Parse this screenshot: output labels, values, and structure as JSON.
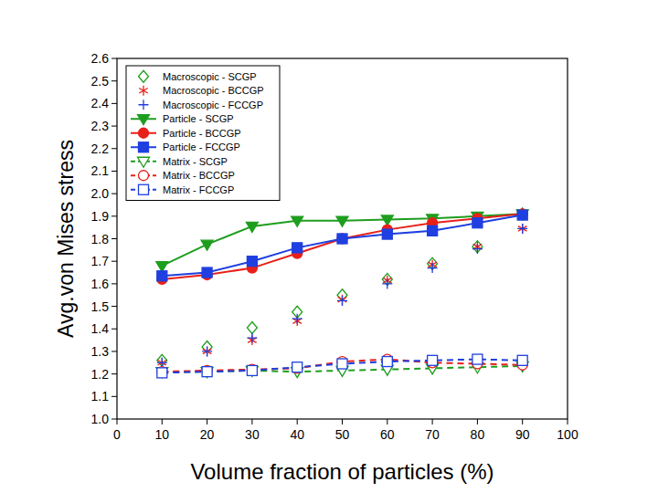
{
  "chart_data": {
    "type": "line",
    "x_label": "Volume fraction of particles (%)",
    "y_label": "Avg.von Mises stress",
    "x": [
      10,
      20,
      30,
      40,
      50,
      60,
      70,
      80,
      90
    ],
    "xlim": [
      0,
      100
    ],
    "xticks": [
      0,
      10,
      20,
      30,
      40,
      50,
      60,
      70,
      80,
      90,
      100
    ],
    "ylim": [
      1,
      2.6
    ],
    "yticks": [
      {
        "value": 1,
        "label": "1.0"
      },
      1.1,
      1.2,
      1.3,
      1.4,
      1.5,
      1.6,
      1.7,
      1.8,
      1.9,
      {
        "value": 2,
        "label": "2.0"
      },
      2.1,
      2.2,
      2.3,
      2.4,
      2.5,
      2.6
    ],
    "grid": false,
    "legend": "top-left",
    "series": [
      {
        "name": "Macroscopic - SCGP",
        "type": "scatter",
        "color": "#1e9e1e",
        "marker": "diamond-open",
        "values": [
          1.26,
          1.32,
          1.405,
          1.475,
          1.55,
          1.62,
          1.69,
          1.765,
          1.91
        ]
      },
      {
        "name": "Macroscopic - BCCGP",
        "type": "scatter",
        "color": "#e8201a",
        "marker": "asterisk",
        "values": [
          1.25,
          1.3,
          1.35,
          1.435,
          1.53,
          1.615,
          1.685,
          1.765,
          1.845
        ]
      },
      {
        "name": "Macroscopic - FCCGP",
        "type": "scatter",
        "color": "#1f3fe0",
        "marker": "plus",
        "values": [
          1.25,
          1.3,
          1.36,
          1.445,
          1.525,
          1.6,
          1.67,
          1.755,
          1.845
        ]
      },
      {
        "name": "Particle - SCGP",
        "type": "line",
        "color": "#1e9e1e",
        "marker": "triangle-down",
        "line_style": "solid",
        "values": [
          1.68,
          1.775,
          1.855,
          1.88,
          1.88,
          1.885,
          1.89,
          1.9,
          1.91
        ]
      },
      {
        "name": "Particle - BCCGP",
        "type": "line",
        "color": "#e8201a",
        "marker": "circle",
        "line_style": "solid",
        "values": [
          1.62,
          1.64,
          1.67,
          1.735,
          1.8,
          1.84,
          1.87,
          1.89,
          1.91
        ]
      },
      {
        "name": "Particle - FCCGP",
        "type": "line",
        "color": "#1f3fe0",
        "marker": "square",
        "line_style": "solid",
        "values": [
          1.635,
          1.65,
          1.7,
          1.76,
          1.8,
          1.82,
          1.835,
          1.87,
          1.905
        ]
      },
      {
        "name": "Matrix - SCGP",
        "type": "line",
        "color": "#1e9e1e",
        "marker": "triangle-down-open",
        "line_style": "dashed",
        "values": [
          1.21,
          1.21,
          1.215,
          1.21,
          1.215,
          1.22,
          1.225,
          1.23,
          1.235
        ]
      },
      {
        "name": "Matrix - BCCGP",
        "type": "line",
        "color": "#e8201a",
        "marker": "circle-open",
        "line_style": "dashed",
        "values": [
          1.21,
          1.215,
          1.22,
          1.225,
          1.255,
          1.265,
          1.25,
          1.245,
          1.24
        ]
      },
      {
        "name": "Matrix - FCCGP",
        "type": "line",
        "color": "#1f3fe0",
        "marker": "square-open",
        "line_style": "dashed",
        "values": [
          1.205,
          1.21,
          1.215,
          1.23,
          1.245,
          1.255,
          1.26,
          1.265,
          1.26
        ]
      }
    ]
  }
}
